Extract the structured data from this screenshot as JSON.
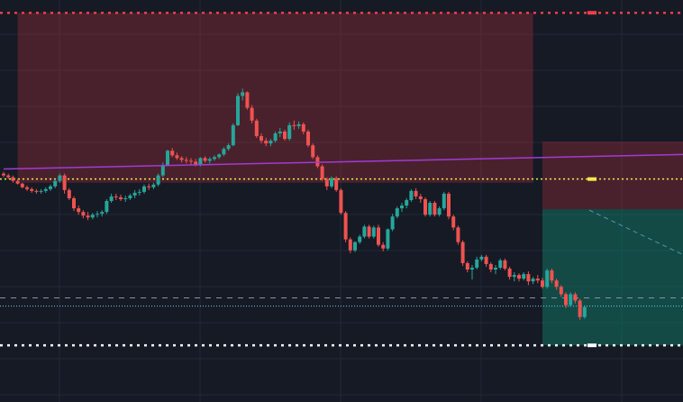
{
  "colors": {
    "background": "#161a25",
    "grid": "#232836",
    "bull": "#26a69a",
    "bear": "#ef5350",
    "stop_zone": "rgba(178,48,60,0.33)",
    "target_zone": "rgba(19,115,98,0.55)",
    "trend_line": "#a23ad6",
    "reference_line": "#f2ea4b",
    "resistance_line": "#ef3f47",
    "support_line": "#ffffff",
    "mid_line": "#8a91a6",
    "projection_line": "#79c6ee"
  },
  "chart_data": {
    "type": "candlestick",
    "title": "",
    "xlabel": "",
    "ylabel": "",
    "ylim": [
      56,
      100
    ],
    "grid": true,
    "candles": [
      [
        81.0,
        81.2,
        80.6,
        80.8
      ],
      [
        80.8,
        81.0,
        80.4,
        80.6
      ],
      [
        80.6,
        80.8,
        80.0,
        80.2
      ],
      [
        80.2,
        80.4,
        79.8,
        79.9
      ],
      [
        79.9,
        80.0,
        79.4,
        79.5
      ],
      [
        79.5,
        79.7,
        79.1,
        79.3
      ],
      [
        79.3,
        79.5,
        78.9,
        79.1
      ],
      [
        79.1,
        79.3,
        78.8,
        79.0
      ],
      [
        79.0,
        79.3,
        78.8,
        79.1
      ],
      [
        79.1,
        79.5,
        78.9,
        79.3
      ],
      [
        79.3,
        79.8,
        79.1,
        79.6
      ],
      [
        79.6,
        80.4,
        79.4,
        80.2
      ],
      [
        80.2,
        81.0,
        80.0,
        80.8
      ],
      [
        80.8,
        81.0,
        78.8,
        79.2
      ],
      [
        79.2,
        79.4,
        78.1,
        78.3
      ],
      [
        78.3,
        78.5,
        76.9,
        77.2
      ],
      [
        77.2,
        77.5,
        76.5,
        76.8
      ],
      [
        76.8,
        77.0,
        76.1,
        76.4
      ],
      [
        76.4,
        76.8,
        75.9,
        76.2
      ],
      [
        76.2,
        76.7,
        76.0,
        76.5
      ],
      [
        76.5,
        76.9,
        76.2,
        76.6
      ],
      [
        76.6,
        77.0,
        76.3,
        76.8
      ],
      [
        76.8,
        78.2,
        76.6,
        78.0
      ],
      [
        78.0,
        78.8,
        77.8,
        78.5
      ],
      [
        78.5,
        78.8,
        78.1,
        78.4
      ],
      [
        78.4,
        78.7,
        78.0,
        78.2
      ],
      [
        78.2,
        78.6,
        77.9,
        78.3
      ],
      [
        78.3,
        78.8,
        78.1,
        78.6
      ],
      [
        78.6,
        79.2,
        78.3,
        78.9
      ],
      [
        78.9,
        79.3,
        78.6,
        79.0
      ],
      [
        79.0,
        79.8,
        78.8,
        79.6
      ],
      [
        79.6,
        79.9,
        79.2,
        79.5
      ],
      [
        79.5,
        80.0,
        79.3,
        79.8
      ],
      [
        79.8,
        81.0,
        79.6,
        80.8
      ],
      [
        80.8,
        82.2,
        80.6,
        81.9
      ],
      [
        81.9,
        83.6,
        81.8,
        83.5
      ],
      [
        83.5,
        83.8,
        82.8,
        83.0
      ],
      [
        83.0,
        83.3,
        82.5,
        82.7
      ],
      [
        82.7,
        82.9,
        82.2,
        82.5
      ],
      [
        82.5,
        82.8,
        82.1,
        82.4
      ],
      [
        82.4,
        82.7,
        82.0,
        82.3
      ],
      [
        82.3,
        82.6,
        81.8,
        82.0
      ],
      [
        82.0,
        82.8,
        81.8,
        82.7
      ],
      [
        82.7,
        82.9,
        82.2,
        82.4
      ],
      [
        82.4,
        82.8,
        82.1,
        82.6
      ],
      [
        82.6,
        83.0,
        82.4,
        82.8
      ],
      [
        82.8,
        83.2,
        82.6,
        83.1
      ],
      [
        83.1,
        83.9,
        82.9,
        83.7
      ],
      [
        83.7,
        84.3,
        83.5,
        84.1
      ],
      [
        84.1,
        86.5,
        84.0,
        86.3
      ],
      [
        86.3,
        89.8,
        86.2,
        89.5
      ],
      [
        89.5,
        90.3,
        89.0,
        89.9
      ],
      [
        89.9,
        90.0,
        88.0,
        88.2
      ],
      [
        88.2,
        88.5,
        86.5,
        86.8
      ],
      [
        86.8,
        87.0,
        84.9,
        85.1
      ],
      [
        85.1,
        85.4,
        84.3,
        84.6
      ],
      [
        84.6,
        84.9,
        84.0,
        84.3
      ],
      [
        84.3,
        84.8,
        84.0,
        84.6
      ],
      [
        84.6,
        85.6,
        84.4,
        85.4
      ],
      [
        85.4,
        86.0,
        85.0,
        85.6
      ],
      [
        85.6,
        85.8,
        84.6,
        84.8
      ],
      [
        84.8,
        86.6,
        84.6,
        86.3
      ],
      [
        86.3,
        86.8,
        85.8,
        86.2
      ],
      [
        86.2,
        86.7,
        85.9,
        86.4
      ],
      [
        86.4,
        86.6,
        85.3,
        85.6
      ],
      [
        85.6,
        85.8,
        83.9,
        84.1
      ],
      [
        84.1,
        84.3,
        82.6,
        82.8
      ],
      [
        82.8,
        83.0,
        81.6,
        81.8
      ],
      [
        81.8,
        82.0,
        80.2,
        80.4
      ],
      [
        80.4,
        80.6,
        79.2,
        79.6
      ],
      [
        79.6,
        80.7,
        79.4,
        80.5
      ],
      [
        80.5,
        80.7,
        79.0,
        79.2
      ],
      [
        79.2,
        79.4,
        76.5,
        76.7
      ],
      [
        76.7,
        76.9,
        73.5,
        73.8
      ],
      [
        73.8,
        74.0,
        72.3,
        72.6
      ],
      [
        72.6,
        73.6,
        72.4,
        73.5
      ],
      [
        73.5,
        74.3,
        73.3,
        74.1
      ],
      [
        74.1,
        75.4,
        73.9,
        75.2
      ],
      [
        75.2,
        75.4,
        73.9,
        74.1
      ],
      [
        74.1,
        75.3,
        73.9,
        75.1
      ],
      [
        75.1,
        75.4,
        73.0,
        73.2
      ],
      [
        73.2,
        73.5,
        72.5,
        72.8
      ],
      [
        72.8,
        75.0,
        72.6,
        74.9
      ],
      [
        74.9,
        76.6,
        74.7,
        76.3
      ],
      [
        76.3,
        77.4,
        76.1,
        77.2
      ],
      [
        77.2,
        77.8,
        76.8,
        77.5
      ],
      [
        77.5,
        78.3,
        77.2,
        78.1
      ],
      [
        78.1,
        79.3,
        77.9,
        79.1
      ],
      [
        79.1,
        79.4,
        78.2,
        78.5
      ],
      [
        78.5,
        78.8,
        77.8,
        78.2
      ],
      [
        78.2,
        78.4,
        76.3,
        76.5
      ],
      [
        76.5,
        78.0,
        76.3,
        77.8
      ],
      [
        77.8,
        78.0,
        76.3,
        76.5
      ],
      [
        76.5,
        77.4,
        76.3,
        77.2
      ],
      [
        77.2,
        79.0,
        77.0,
        78.8
      ],
      [
        78.8,
        79.0,
        76.0,
        76.3
      ],
      [
        76.3,
        76.5,
        74.8,
        75.1
      ],
      [
        75.1,
        75.3,
        73.2,
        73.5
      ],
      [
        73.5,
        73.7,
        70.9,
        71.2
      ],
      [
        71.2,
        71.4,
        70.2,
        70.5
      ],
      [
        70.5,
        71.0,
        69.4,
        70.7
      ],
      [
        70.7,
        71.9,
        70.5,
        71.6
      ],
      [
        71.6,
        72.1,
        71.4,
        71.9
      ],
      [
        71.9,
        72.1,
        70.8,
        71.1
      ],
      [
        71.1,
        71.3,
        70.2,
        70.5
      ],
      [
        70.5,
        71.0,
        70.0,
        70.7
      ],
      [
        70.7,
        71.7,
        70.5,
        71.5
      ],
      [
        71.5,
        71.7,
        70.4,
        70.6
      ],
      [
        70.6,
        70.8,
        69.4,
        69.7
      ],
      [
        69.7,
        70.2,
        69.2,
        69.9
      ],
      [
        69.9,
        70.1,
        69.2,
        69.5
      ],
      [
        69.5,
        70.2,
        69.3,
        70.0
      ],
      [
        70.0,
        70.3,
        68.8,
        69.2
      ],
      [
        69.2,
        69.7,
        68.9,
        69.5
      ],
      [
        69.5,
        69.9,
        69.0,
        69.3
      ],
      [
        69.3,
        69.6,
        68.4,
        68.6
      ],
      [
        68.6,
        70.6,
        68.4,
        70.4
      ],
      [
        70.4,
        70.6,
        69.0,
        69.3
      ],
      [
        69.3,
        69.5,
        68.3,
        68.6
      ],
      [
        68.6,
        68.8,
        67.5,
        67.8
      ],
      [
        67.8,
        68.0,
        66.3,
        66.6
      ],
      [
        66.6,
        68.0,
        66.4,
        67.8
      ],
      [
        67.8,
        68.0,
        66.8,
        67.1
      ],
      [
        67.1,
        67.3,
        65.0,
        65.3
      ],
      [
        65.3,
        66.6,
        65.1,
        66.4
      ]
    ],
    "trend_line": {
      "from": [
        0,
        81.5
      ],
      "to": [
        155,
        83.2
      ]
    },
    "reference_line_y": 80.4,
    "resistance_line_y": 98.6,
    "support_line_y": 62.2,
    "mid_line_y": 67.4,
    "current_price_line_y": 66.5,
    "stop_zone": {
      "x_from": 3,
      "x_to": 113,
      "y_low": 80.0,
      "y_high": 98.6
    },
    "risk_zone": {
      "x_from": 115,
      "x_to": 173,
      "y_low": 77.1,
      "y_high": 84.5
    },
    "target_zone": {
      "x_from": 115,
      "x_to": 173,
      "y_low": 62.2,
      "y_high": 77.1
    },
    "projection_line": {
      "from": [
        125,
        77.0
      ],
      "to": [
        157,
        69.2
      ]
    }
  }
}
